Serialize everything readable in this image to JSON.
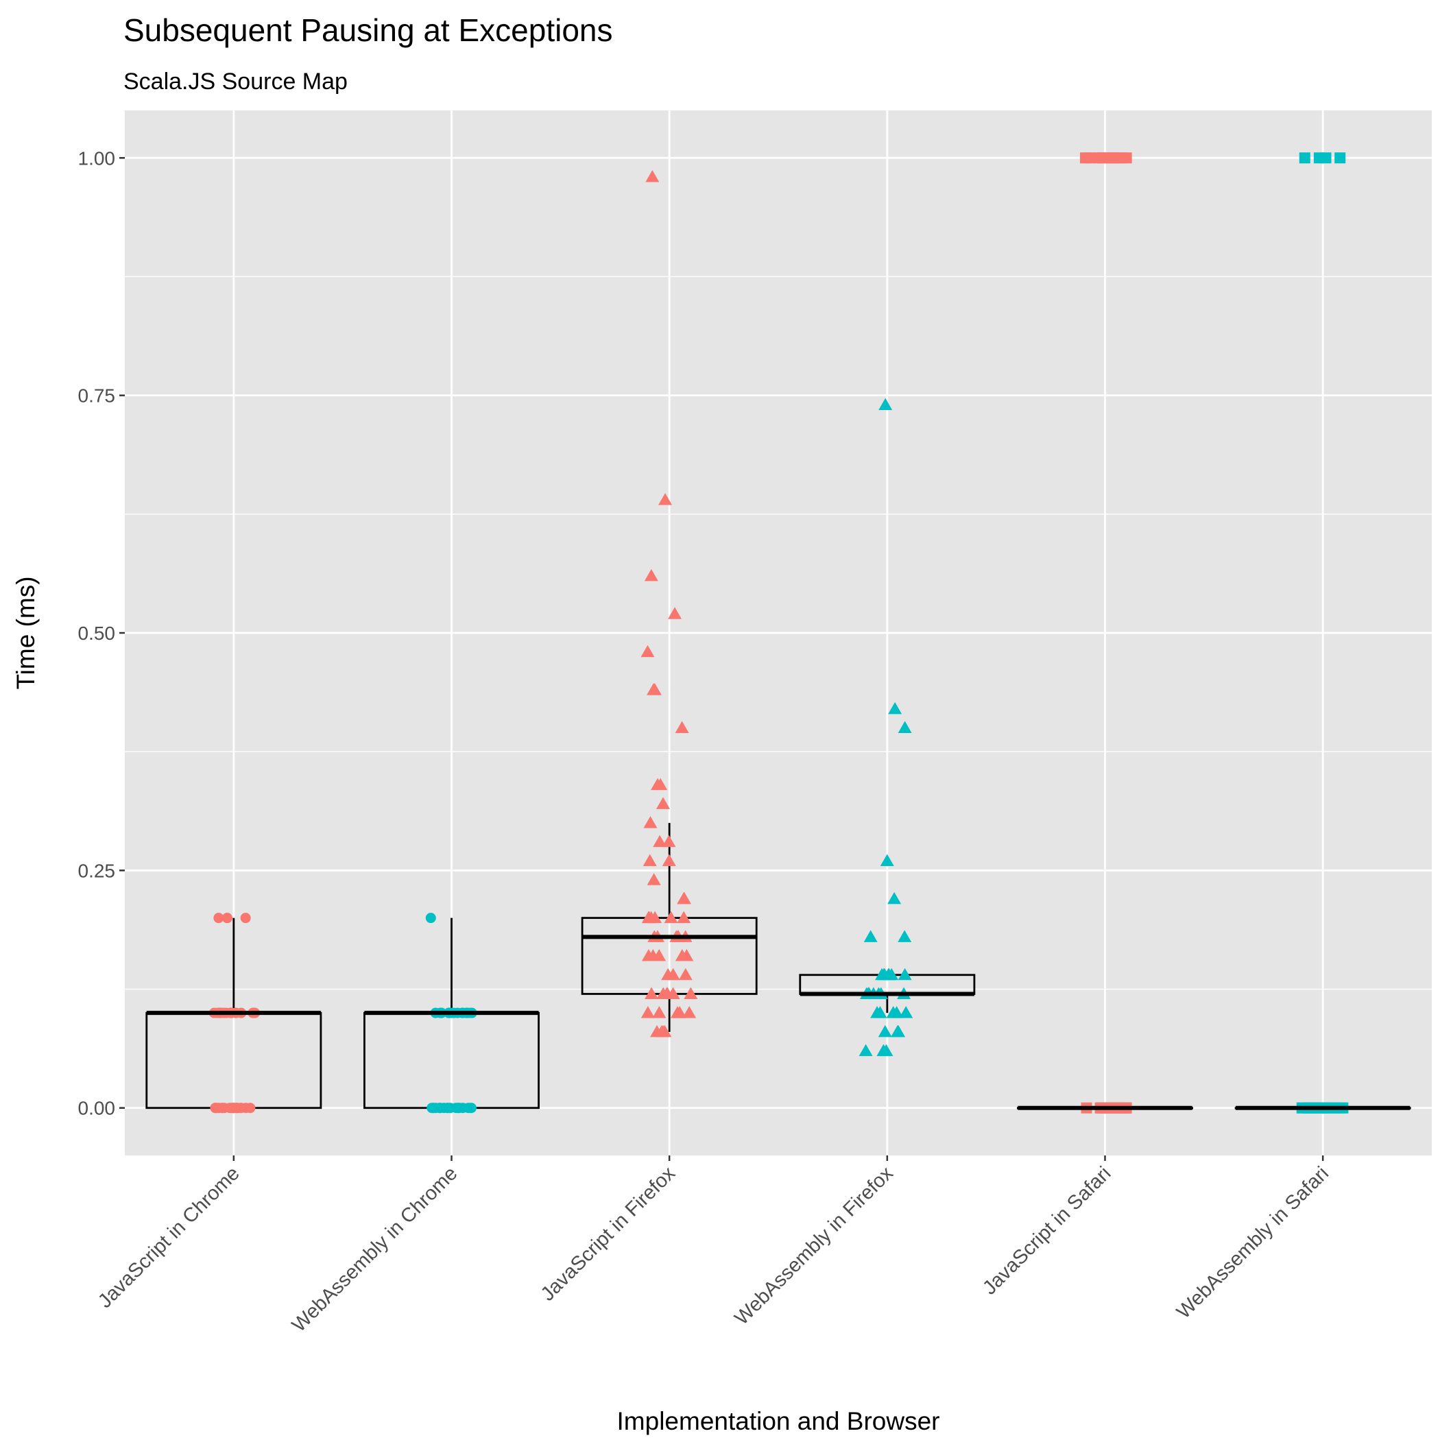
{
  "chart_data": {
    "type": "boxplot",
    "title": "Subsequent Pausing at Exceptions",
    "subtitle": "Scala.JS Source Map",
    "xlabel": "Implementation and Browser",
    "ylabel": "Time (ms)",
    "ylim": [
      -0.05,
      1.05
    ],
    "y_ticks": [
      0.0,
      0.25,
      0.5,
      0.75,
      1.0
    ],
    "y_tick_labels": [
      "0.00",
      "0.25",
      "0.50",
      "0.75",
      "1.00"
    ],
    "grid": true,
    "legend": "none",
    "colors": {
      "JavaScript": "#f8766d",
      "WebAssembly": "#00bfc4",
      "box": "#000000",
      "panel": "#e5e5e5",
      "grid": "#ffffff"
    },
    "categories": [
      "JavaScript in Chrome",
      "WebAssembly in Chrome",
      "JavaScript in Firefox",
      "WebAssembly in Firefox",
      "JavaScript in Safari",
      "WebAssembly in Safari"
    ],
    "series": [
      {
        "category": "JavaScript in Chrome",
        "implementation": "JavaScript",
        "marker": "circle",
        "box": {
          "q1": 0.0,
          "median": 0.1,
          "q3": 0.1,
          "whisker_low": 0.0,
          "whisker_high": 0.2
        },
        "points": [
          0,
          0,
          0,
          0,
          0,
          0,
          0,
          0,
          0,
          0,
          0,
          0,
          0,
          0,
          0,
          0,
          0,
          0,
          0,
          0,
          0.1,
          0.1,
          0.1,
          0.1,
          0.1,
          0.1,
          0.1,
          0.1,
          0.1,
          0.1,
          0.1,
          0.1,
          0.1,
          0.1,
          0.1,
          0.1,
          0.1,
          0.1,
          0.2,
          0.2,
          0.2,
          0.2
        ]
      },
      {
        "category": "WebAssembly in Chrome",
        "implementation": "WebAssembly",
        "marker": "circle",
        "box": {
          "q1": 0.0,
          "median": 0.1,
          "q3": 0.1,
          "whisker_low": 0.0,
          "whisker_high": 0.2
        },
        "points": [
          0,
          0,
          0,
          0,
          0,
          0,
          0,
          0,
          0,
          0,
          0,
          0,
          0,
          0,
          0,
          0,
          0,
          0,
          0,
          0,
          0.1,
          0.1,
          0.1,
          0.1,
          0.1,
          0.1,
          0.1,
          0.1,
          0.1,
          0.1,
          0.1,
          0.1,
          0.1,
          0.1,
          0.1,
          0.1,
          0.1,
          0.1,
          0.1,
          0.2
        ]
      },
      {
        "category": "JavaScript in Firefox",
        "implementation": "JavaScript",
        "marker": "triangle",
        "box": {
          "q1": 0.12,
          "median": 0.18,
          "q3": 0.2,
          "whisker_low": 0.08,
          "whisker_high": 0.3
        },
        "points": [
          0.08,
          0.08,
          0.08,
          0.08,
          0.1,
          0.1,
          0.1,
          0.1,
          0.1,
          0.12,
          0.12,
          0.12,
          0.12,
          0.12,
          0.12,
          0.14,
          0.14,
          0.14,
          0.16,
          0.16,
          0.16,
          0.16,
          0.16,
          0.18,
          0.18,
          0.18,
          0.18,
          0.18,
          0.18,
          0.2,
          0.2,
          0.2,
          0.2,
          0.2,
          0.2,
          0.22,
          0.22,
          0.24,
          0.26,
          0.26,
          0.28,
          0.28,
          0.3,
          0.32,
          0.34,
          0.34,
          0.4,
          0.44,
          0.44,
          0.48,
          0.52,
          0.56,
          0.64,
          0.98
        ]
      },
      {
        "category": "WebAssembly in Firefox",
        "implementation": "WebAssembly",
        "marker": "triangle",
        "box": {
          "q1": 0.12,
          "median": 0.12,
          "q3": 0.14,
          "whisker_low": 0.1,
          "whisker_high": 0.14
        },
        "points": [
          0.06,
          0.06,
          0.06,
          0.08,
          0.08,
          0.08,
          0.1,
          0.1,
          0.1,
          0.1,
          0.1,
          0.12,
          0.12,
          0.12,
          0.12,
          0.12,
          0.12,
          0.12,
          0.12,
          0.14,
          0.14,
          0.14,
          0.14,
          0.14,
          0.14,
          0.14,
          0.18,
          0.18,
          0.22,
          0.26,
          0.4,
          0.42,
          0.74
        ]
      },
      {
        "category": "JavaScript in Safari",
        "implementation": "JavaScript",
        "marker": "square",
        "box": {
          "q1": 0.0,
          "median": 0.0,
          "q3": 0.0,
          "whisker_low": 0.0,
          "whisker_high": 0.0
        },
        "points": [
          0,
          0,
          0,
          0,
          0,
          0,
          0,
          0,
          0,
          0,
          0,
          0,
          0,
          0,
          0,
          0,
          0,
          0,
          0,
          0,
          1,
          1,
          1,
          1,
          1,
          1,
          1,
          1,
          1,
          1
        ]
      },
      {
        "category": "WebAssembly in Safari",
        "implementation": "WebAssembly",
        "marker": "square",
        "box": {
          "q1": 0.0,
          "median": 0.0,
          "q3": 0.0,
          "whisker_low": 0.0,
          "whisker_high": 0.0
        },
        "points": [
          0,
          0,
          0,
          0,
          0,
          0,
          0,
          0,
          0,
          0,
          0,
          0,
          0,
          0,
          0,
          0,
          0,
          0,
          0,
          0,
          1,
          1,
          1,
          1
        ]
      }
    ]
  }
}
